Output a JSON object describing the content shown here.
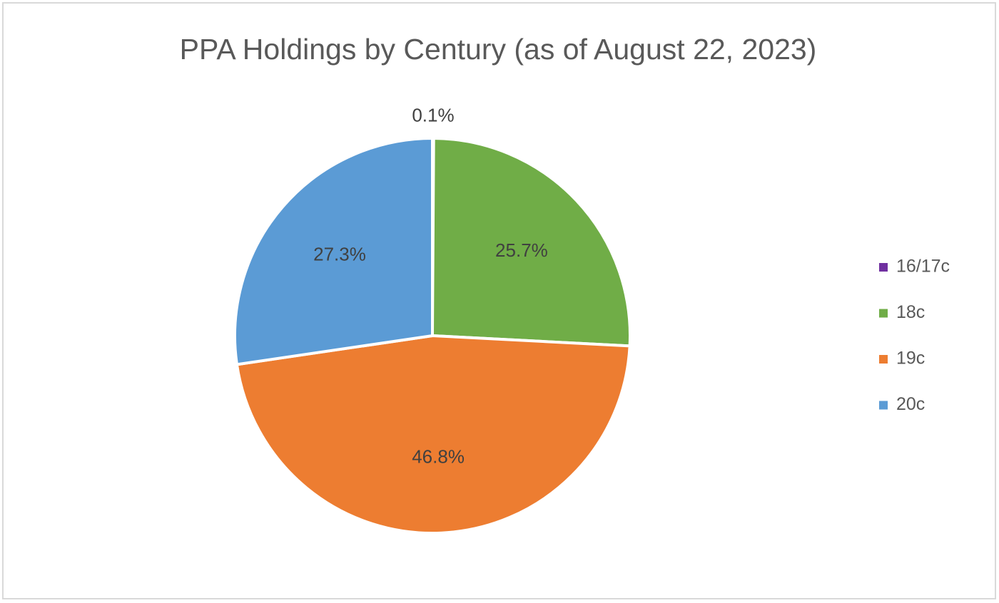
{
  "chart_data": {
    "type": "pie",
    "title": "PPA Holdings by Century (as of August 22, 2023)",
    "categories": [
      "16/17c",
      "18c",
      "19c",
      "20c"
    ],
    "values": [
      0.1,
      25.7,
      46.8,
      27.3
    ],
    "value_labels": [
      "0.1%",
      "25.7%",
      "46.8%",
      "27.3%"
    ],
    "colors": [
      "#7030a0",
      "#70ad47",
      "#ed7d31",
      "#5b9bd5"
    ],
    "legend": "right"
  }
}
